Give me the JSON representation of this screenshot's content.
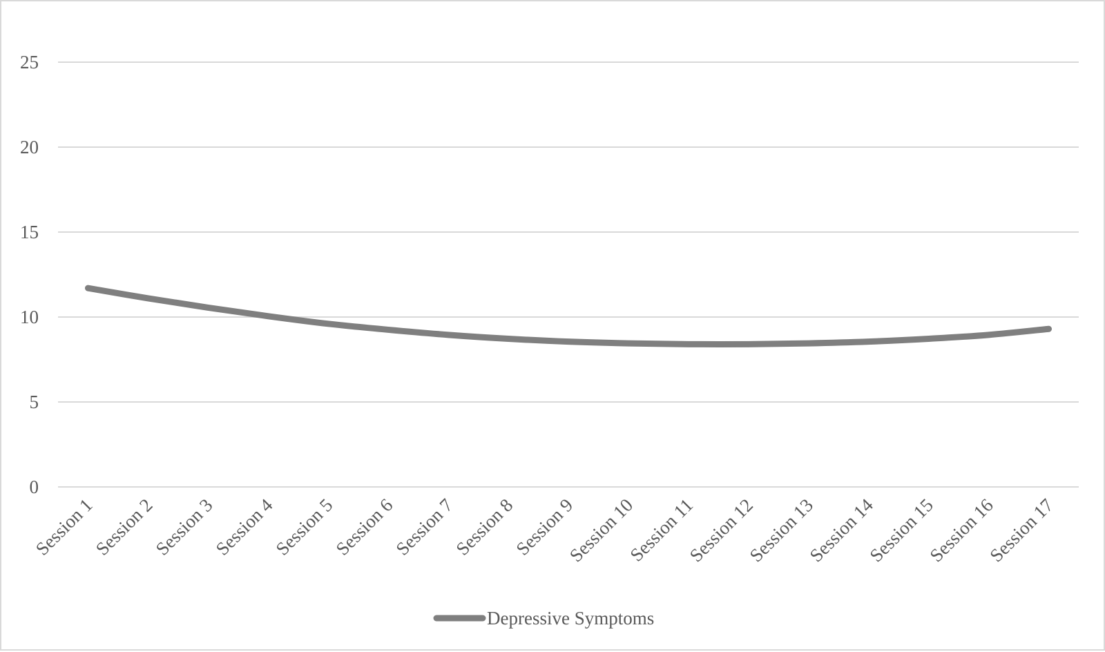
{
  "chart_data": {
    "type": "line",
    "title": "",
    "xlabel": "",
    "ylabel": "",
    "categories": [
      "Session 1",
      "Session 2",
      "Session 3",
      "Session 4",
      "Session 5",
      "Session 6",
      "Session 7",
      "Session 8",
      "Session 9",
      "Session 10",
      "Session 11",
      "Session 12",
      "Session 13",
      "Session 14",
      "Session 15",
      "Session 16",
      "Session 17"
    ],
    "series": [
      {
        "name": "Depressive Symptoms",
        "color": "#7f7f7f",
        "values": [
          11.7,
          11.1,
          10.55,
          10.05,
          9.6,
          9.25,
          8.95,
          8.72,
          8.55,
          8.45,
          8.4,
          8.4,
          8.45,
          8.55,
          8.72,
          8.95,
          9.3
        ]
      }
    ],
    "ylim": [
      0,
      25
    ],
    "yticks": [
      0,
      5,
      10,
      15,
      20,
      25
    ],
    "grid": true,
    "legend": "bottom",
    "smooth": true
  }
}
